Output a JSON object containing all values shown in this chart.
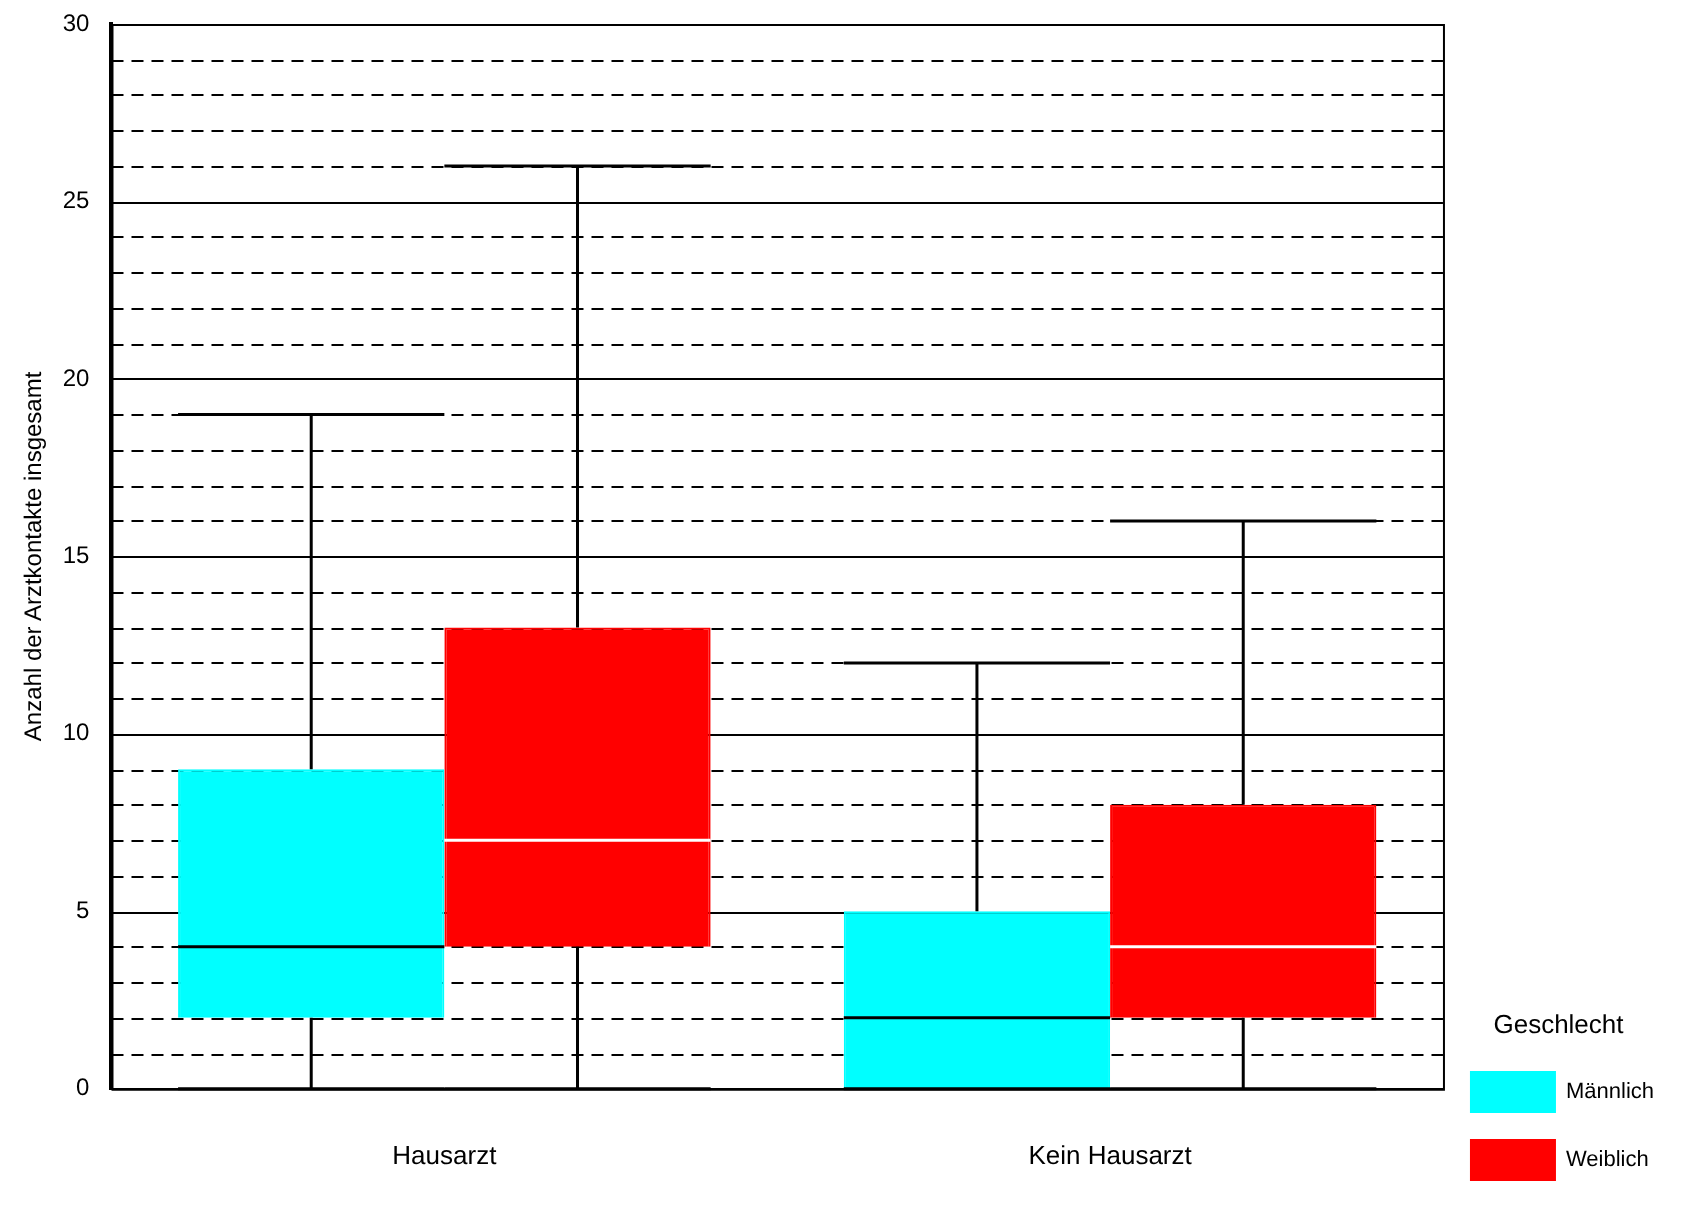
{
  "chart_data": {
    "type": "box",
    "ylabel": "Anzahl der Arztkontakte insgesamt",
    "legend_title": "Geschlecht",
    "legend": "right",
    "grid": "y",
    "categories": [
      "Hausarzt",
      "Kein Hausarzt"
    ],
    "ylim": [
      0,
      30
    ],
    "yticks": [
      0,
      {
        "value": 1,
        "label": null
      },
      {
        "value": 2,
        "label": null
      },
      {
        "value": 3,
        "label": null
      },
      {
        "value": 4,
        "label": null
      },
      5,
      {
        "value": 6,
        "label": null
      },
      {
        "value": 7,
        "label": null
      },
      {
        "value": 8,
        "label": null
      },
      {
        "value": 9,
        "label": null
      },
      10,
      {
        "value": 11,
        "label": null
      },
      {
        "value": 12,
        "label": null
      },
      {
        "value": 13,
        "label": null
      },
      {
        "value": 14,
        "label": null
      },
      15,
      {
        "value": 16,
        "label": null
      },
      {
        "value": 17,
        "label": null
      },
      {
        "value": 18,
        "label": null
      },
      {
        "value": 19,
        "label": null
      },
      20,
      {
        "value": 21,
        "label": null
      },
      {
        "value": 22,
        "label": null
      },
      {
        "value": 23,
        "label": null
      },
      {
        "value": 24,
        "label": null
      },
      25,
      {
        "value": 26,
        "label": null
      },
      {
        "value": 27,
        "label": null
      },
      {
        "value": 28,
        "label": null
      },
      {
        "value": 29,
        "label": null
      },
      30
    ],
    "series": [
      {
        "name": "Männlich",
        "color": "#00ffff",
        "boxes": [
          {
            "low": 0,
            "q1": 2,
            "median": 4,
            "q3": 9,
            "high": 19
          },
          {
            "low": 0,
            "q1": 0,
            "median": 2,
            "q3": 5,
            "high": 12
          }
        ]
      },
      {
        "name": "Weiblich",
        "color": "#ff0000",
        "boxes": [
          {
            "low": 0,
            "q1": 4,
            "median": 7,
            "q3": 13,
            "high": 26
          },
          {
            "low": 0,
            "q1": 2,
            "median": 4,
            "q3": 8,
            "high": 16
          }
        ]
      }
    ]
  }
}
